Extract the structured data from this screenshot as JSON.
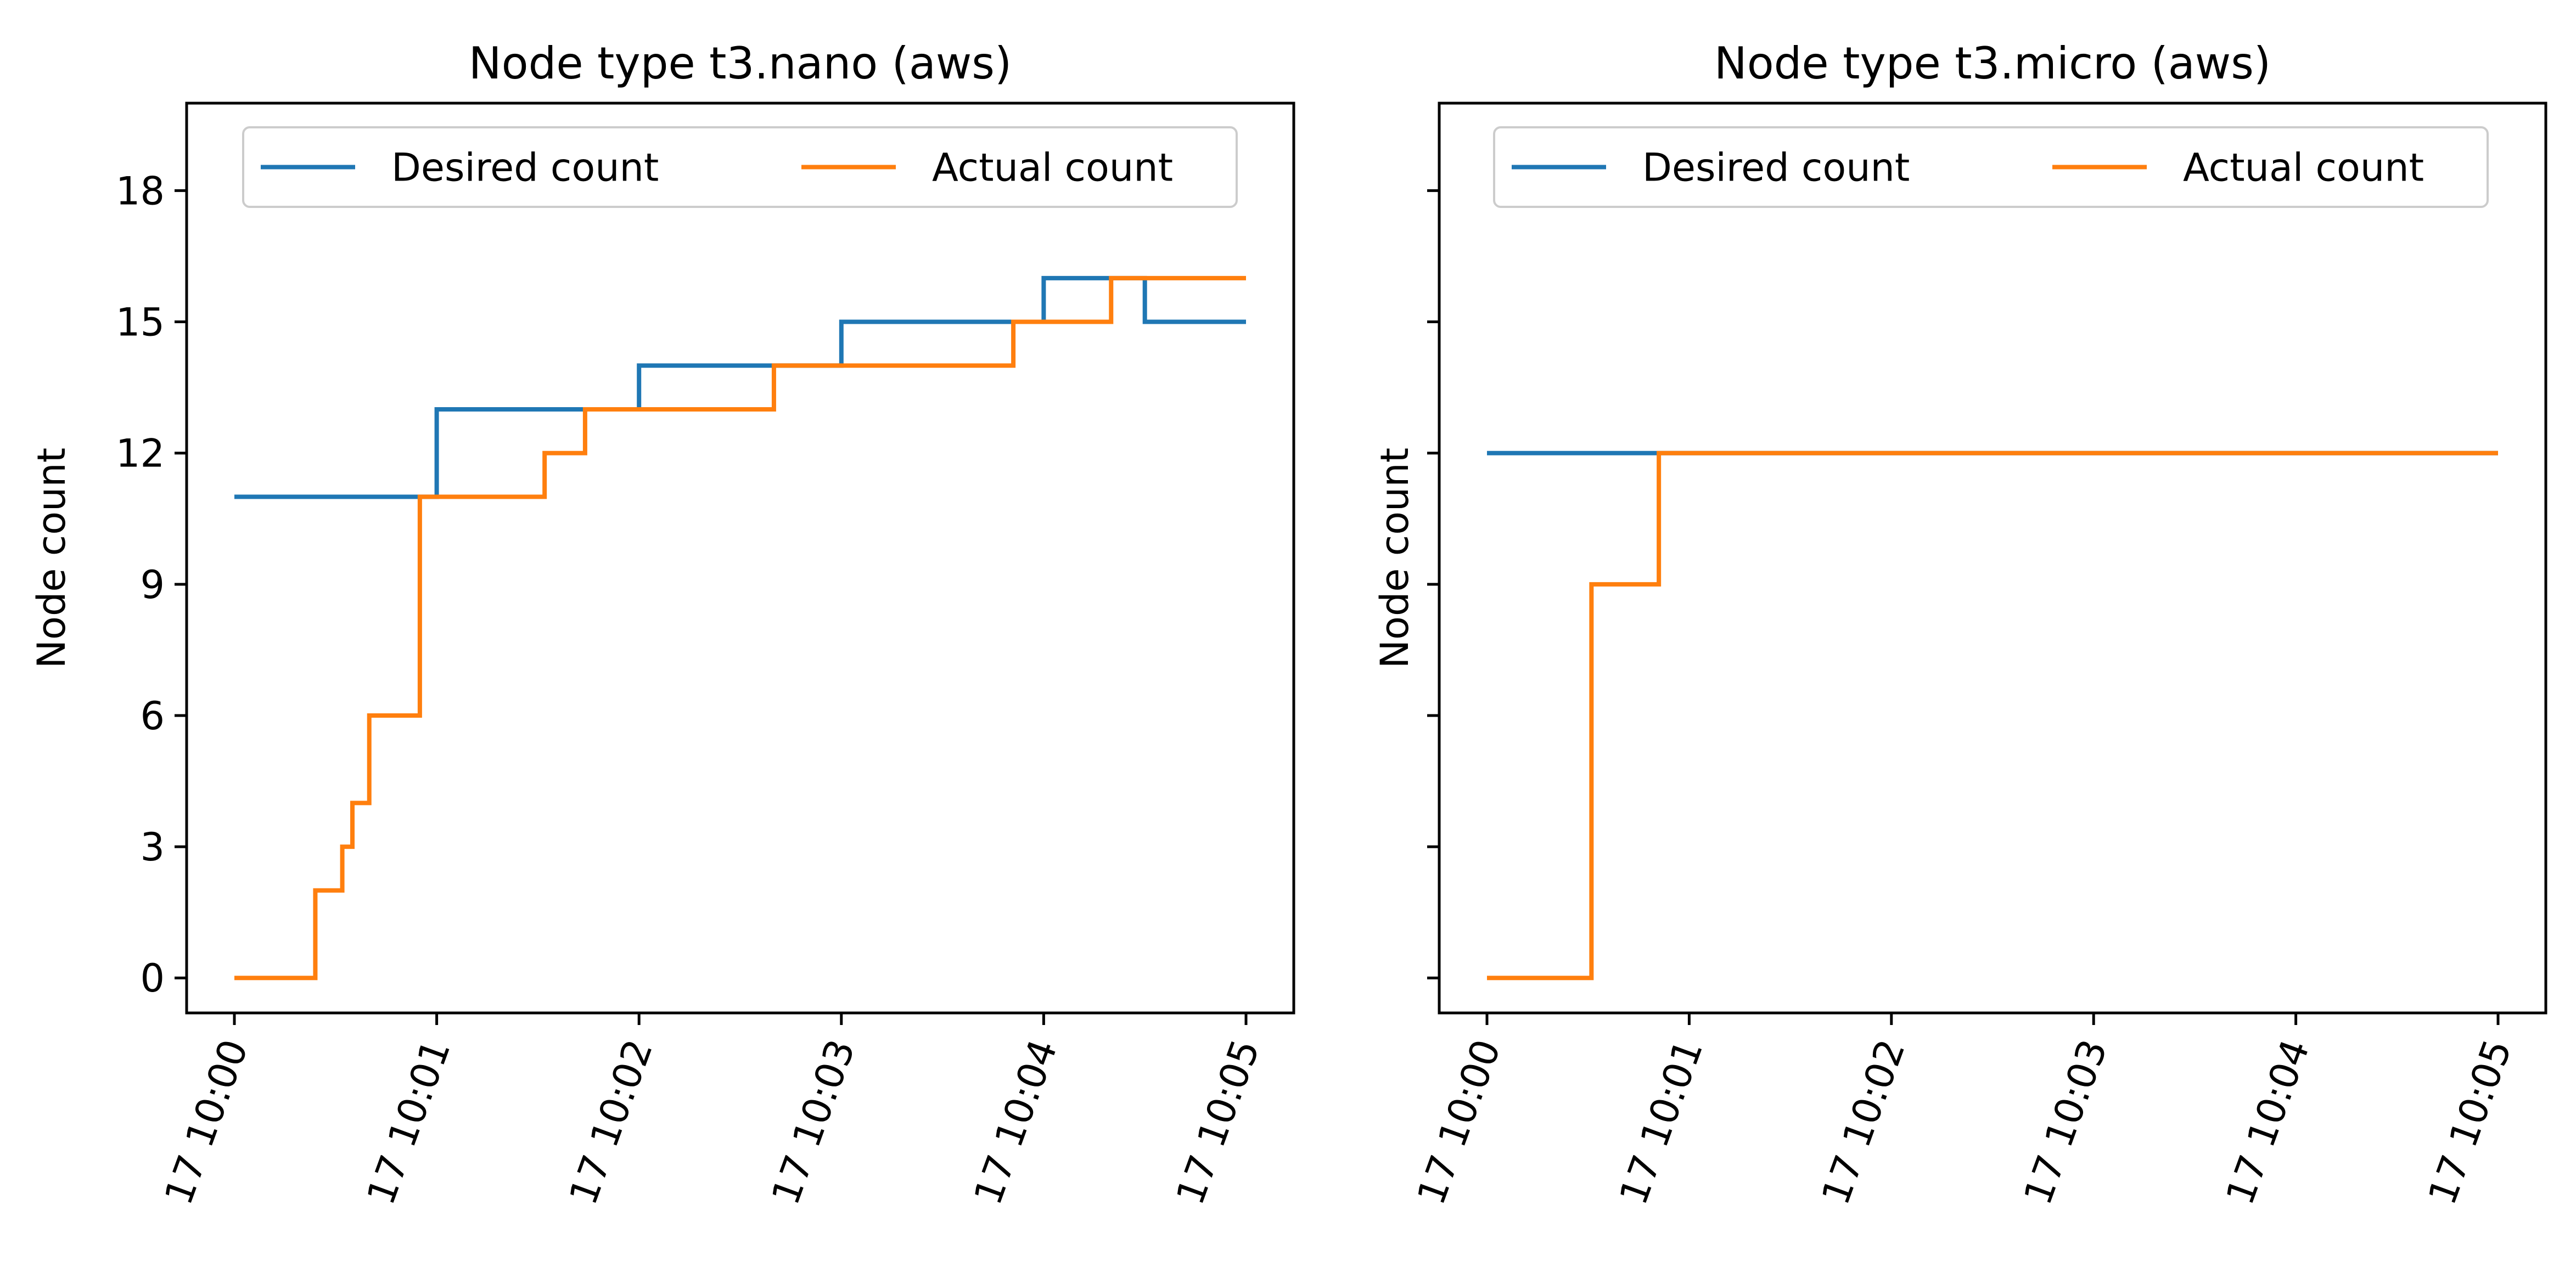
{
  "chart_data": [
    {
      "type": "line",
      "title": "Node type t3.nano (aws)",
      "xlabel": "",
      "ylabel": "Node count",
      "x_tick_labels": [
        "17 10:00",
        "17 10:01",
        "17 10:02",
        "17 10:03",
        "17 10:04",
        "17 10:05"
      ],
      "y_tick_labels": [
        "0",
        "3",
        "6",
        "9",
        "12",
        "15",
        "18"
      ],
      "y_ticks": [
        0,
        3,
        6,
        9,
        12,
        15,
        18
      ],
      "xlim": [
        "10:00:00",
        "10:05:00"
      ],
      "ylim": [
        -0.8,
        20
      ],
      "grid": false,
      "legend_position": "upper center",
      "series": [
        {
          "name": "Desired count",
          "color": "#1f77b4",
          "step": true,
          "points": [
            {
              "x": "10:00:00",
              "y": 11
            },
            {
              "x": "10:01:00",
              "y": 13
            },
            {
              "x": "10:02:00",
              "y": 14
            },
            {
              "x": "10:03:00",
              "y": 15
            },
            {
              "x": "10:04:00",
              "y": 16
            },
            {
              "x": "10:04:30",
              "y": 15
            },
            {
              "x": "10:05:00",
              "y": 15
            }
          ]
        },
        {
          "name": "Actual count",
          "color": "#ff7f0e",
          "step": true,
          "points": [
            {
              "x": "10:00:00",
              "y": 0
            },
            {
              "x": "10:00:24",
              "y": 2
            },
            {
              "x": "10:00:32",
              "y": 3
            },
            {
              "x": "10:00:35",
              "y": 4
            },
            {
              "x": "10:00:40",
              "y": 6
            },
            {
              "x": "10:00:55",
              "y": 11
            },
            {
              "x": "10:01:32",
              "y": 12
            },
            {
              "x": "10:01:44",
              "y": 13
            },
            {
              "x": "10:02:40",
              "y": 14
            },
            {
              "x": "10:03:51",
              "y": 15
            },
            {
              "x": "10:04:20",
              "y": 16
            },
            {
              "x": "10:05:00",
              "y": 16
            }
          ]
        }
      ]
    },
    {
      "type": "line",
      "title": "Node type t3.micro (aws)",
      "xlabel": "",
      "ylabel": "Node count",
      "x_tick_labels": [
        "17 10:00",
        "17 10:01",
        "17 10:02",
        "17 10:03",
        "17 10:04",
        "17 10:05"
      ],
      "y_tick_labels": [],
      "y_ticks": [
        0,
        3,
        6,
        9,
        12,
        15,
        18
      ],
      "xlim": [
        "10:00:00",
        "10:05:00"
      ],
      "ylim": [
        -0.8,
        20
      ],
      "grid": false,
      "legend_position": "upper center",
      "series": [
        {
          "name": "Desired count",
          "color": "#1f77b4",
          "step": true,
          "points": [
            {
              "x": "10:00:00",
              "y": 12
            },
            {
              "x": "10:05:00",
              "y": 12
            }
          ]
        },
        {
          "name": "Actual count",
          "color": "#ff7f0e",
          "step": true,
          "points": [
            {
              "x": "10:00:00",
              "y": 0
            },
            {
              "x": "10:00:31",
              "y": 9
            },
            {
              "x": "10:00:51",
              "y": 12
            },
            {
              "x": "10:05:00",
              "y": 12
            }
          ]
        }
      ]
    }
  ]
}
